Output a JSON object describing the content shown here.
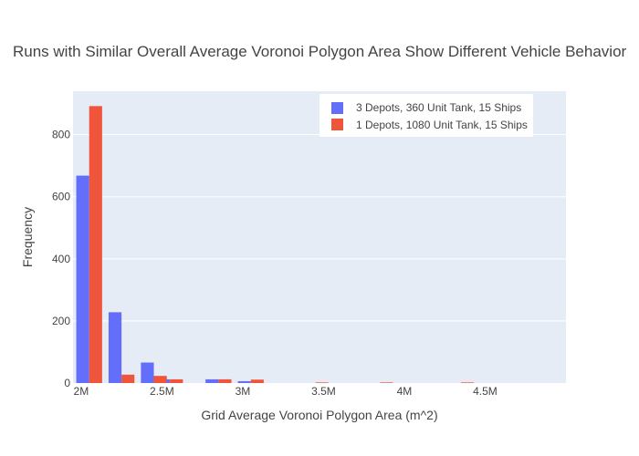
{
  "chart_data": {
    "type": "bar",
    "title": "Runs with Similar Overall Average Voronoi Polygon Area Show Different Vehicle Behavior",
    "xlabel": "Grid Average Voronoi Polygon Area (m^2)",
    "ylabel": "Frequency",
    "xlim": [
      1950000,
      5000000
    ],
    "ylim": [
      0,
      940
    ],
    "x_ticks": [
      {
        "value": 2000000,
        "label": "2M"
      },
      {
        "value": 2500000,
        "label": "2.5M"
      },
      {
        "value": 3000000,
        "label": "3M"
      },
      {
        "value": 3500000,
        "label": "3.5M"
      },
      {
        "value": 4000000,
        "label": "4M"
      },
      {
        "value": 4500000,
        "label": "4.5M"
      }
    ],
    "y_ticks": [
      0,
      200,
      400,
      600,
      800
    ],
    "bin_width": 200000,
    "legend_position": "top-right",
    "series": [
      {
        "name": "3 Depots, 360 Unit Tank, 15 Ships",
        "color": "#636efa",
        "bins": [
          {
            "x": 1950000,
            "value": 668
          },
          {
            "x": 2150000,
            "value": 228
          },
          {
            "x": 2350000,
            "value": 66
          },
          {
            "x": 2450000,
            "value": 12
          },
          {
            "x": 2750000,
            "value": 12
          },
          {
            "x": 2950000,
            "value": 6
          }
        ]
      },
      {
        "name": "1 Depots, 1080 Unit Tank, 15 Ships",
        "color": "#ef553b",
        "bins": [
          {
            "x": 1950000,
            "value": 892
          },
          {
            "x": 2150000,
            "value": 27
          },
          {
            "x": 2350000,
            "value": 23
          },
          {
            "x": 2450000,
            "value": 12
          },
          {
            "x": 2750000,
            "value": 12
          },
          {
            "x": 2950000,
            "value": 11
          },
          {
            "x": 3350000,
            "value": 2
          },
          {
            "x": 3750000,
            "value": 2
          },
          {
            "x": 4250000,
            "value": 2
          },
          {
            "x": 4950000,
            "value": 2
          }
        ]
      }
    ]
  }
}
